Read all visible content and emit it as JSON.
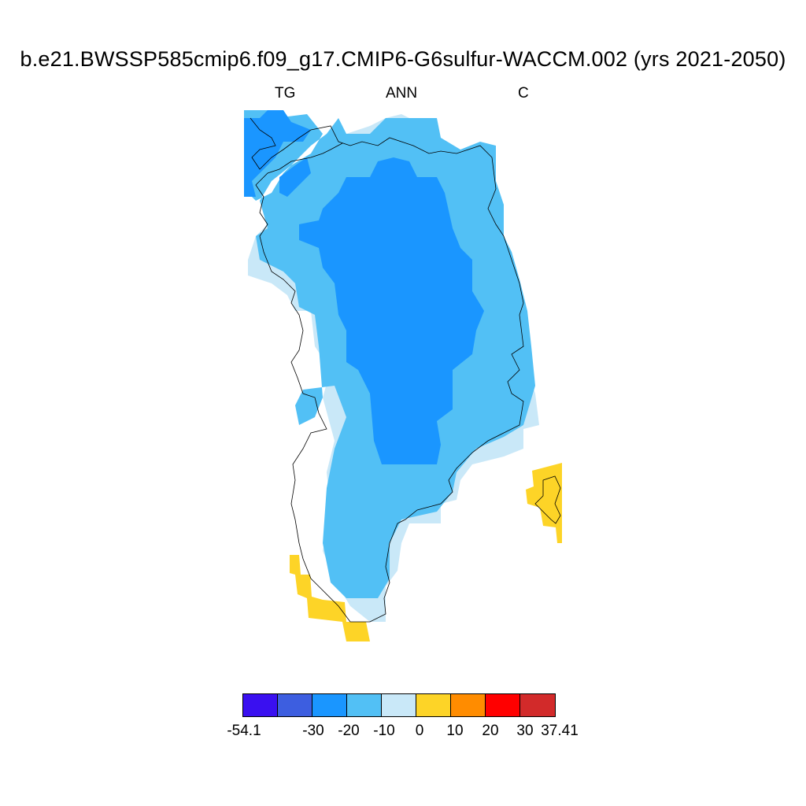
{
  "title": "b.e21.BWSSP585cmip6.f09_g17.CMIP6-G6sulfur-WACCM.002 (yrs 2021-2050)",
  "subtitle_left": "TG",
  "subtitle_center": "ANN",
  "subtitle_right": "C",
  "colors": {
    "c_lt_-30": "#3a10f0",
    "c_-30": "#3d5ee0",
    "c_-20": "#1a96ff",
    "c_-10": "#52c0f5",
    "c_0": "#c9e8f8",
    "c_10": "#fdd427",
    "c_20": "#ff8c00",
    "c_30": "#ff0000",
    "c_max": "#d22a2a"
  },
  "colorbar": {
    "min_label": "-54.1",
    "max_label": "37.41",
    "levels": [
      "-30",
      "-20",
      "-10",
      "0",
      "10",
      "20",
      "30"
    ]
  }
}
